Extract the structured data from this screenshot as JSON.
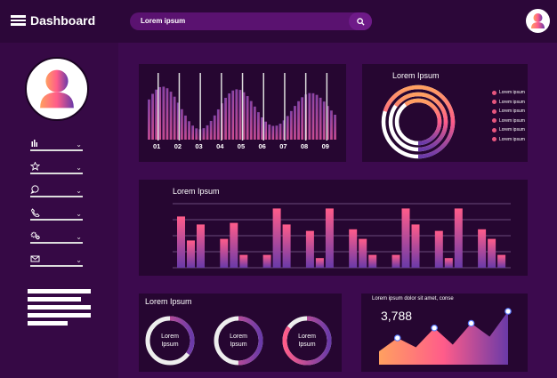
{
  "header": {
    "title": "Dashboard",
    "search_placeholder": "Lorem ipsum",
    "menu_icon": "hamburger-icon",
    "search_icon": "search-icon"
  },
  "sidebar": {
    "items": [
      {
        "icon": "bar-chart-icon"
      },
      {
        "icon": "star-icon"
      },
      {
        "icon": "chat-icon"
      },
      {
        "icon": "phone-icon"
      },
      {
        "icon": "gears-icon"
      },
      {
        "icon": "mail-icon"
      }
    ]
  },
  "wave_chart": {
    "labels": [
      "01",
      "02",
      "03",
      "04",
      "05",
      "06",
      "07",
      "08",
      "09"
    ]
  },
  "rings_panel": {
    "title": "Lorem Ipsum",
    "legend": [
      "Lorem ipsum",
      "Lorem ipsum",
      "Lorem ipsum",
      "Lorem ipsum",
      "Lorem ipsum",
      "Lorem ipsum"
    ],
    "ring_fractions": [
      0.7,
      0.65,
      0.6
    ]
  },
  "bar_panel": {
    "title": "Lorem Ipsum",
    "values": [
      3.2,
      1.7,
      2.7,
      1.8,
      2.8,
      0.8,
      0.8,
      3.7,
      2.7,
      2.3,
      0.6,
      3.7,
      2.4,
      1.8,
      0.8,
      0.8,
      3.7,
      2.7,
      2.3,
      0.6,
      3.7,
      2.4,
      1.8,
      0.8
    ],
    "ymax": 4
  },
  "donut_panel": {
    "title": "Lorem Ipsum",
    "donuts": [
      {
        "label1": "Lorem",
        "label2": "Ipsum",
        "fraction": 0.35
      },
      {
        "label1": "Lorem",
        "label2": "Ipsum",
        "fraction": 0.5
      },
      {
        "label1": "Lorem",
        "label2": "Ipsum",
        "fraction": 0.85
      }
    ]
  },
  "area_panel": {
    "title": "Lorem ipsum dolor sit amet, conse",
    "value": "3,788",
    "points": [
      2,
      4,
      2.6,
      5.5,
      3,
      6.2,
      4.2,
      8
    ]
  },
  "colors": {
    "accent_pink": "#ff5c8a",
    "accent_orange": "#ffa060",
    "accent_purple": "#6a3aa8",
    "bg": "#3c0a4e",
    "panel": "#260631"
  }
}
